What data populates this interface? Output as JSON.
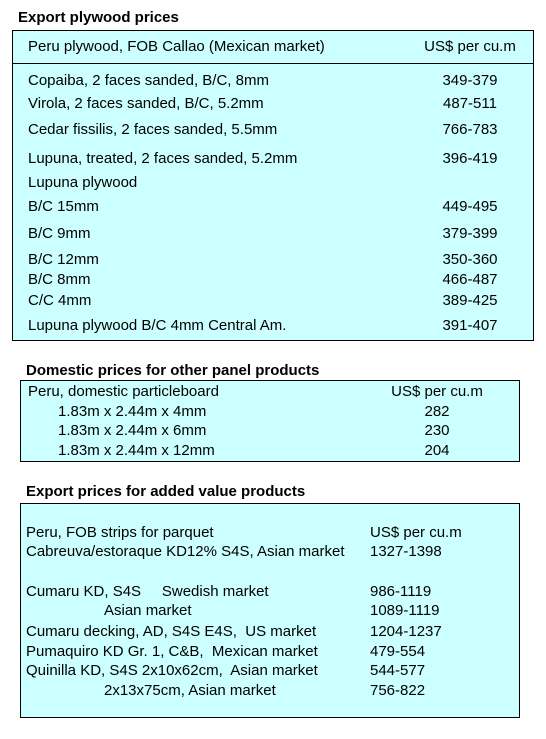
{
  "sections": [
    {
      "title": "Export plywood prices",
      "header": [
        "Peru plywood, FOB Callao (Mexican market)",
        "US$ per cu.m"
      ],
      "rows": [
        [
          "Copaiba, 2 faces sanded, B/C, 8mm",
          "349-379"
        ],
        [
          "Virola, 2 faces sanded, B/C, 5.2mm",
          "487-511"
        ],
        [
          "Cedar fissilis, 2 faces sanded, 5.5mm",
          "766-783"
        ],
        [
          "Lupuna, treated, 2 faces sanded, 5.2mm",
          "396-419"
        ],
        [
          "Lupuna plywood"
        ],
        [
          "B/C 15mm",
          "449-495"
        ],
        [
          "B/C 9mm",
          "379-399"
        ],
        [
          "B/C 12mm",
          "350-360"
        ],
        [
          "B/C 8mm",
          "466-487"
        ],
        [
          "C/C 4mm",
          "389-425"
        ],
        [
          "Lupuna plywood B/C 4mm Central Am.",
          "391-407"
        ]
      ]
    },
    {
      "title": "Domestic prices for other panel products",
      "header": [
        "Peru, domestic particleboard",
        "US$ per cu.m"
      ],
      "rows": [
        [
          "1.83m x 2.44m x 4mm",
          "282"
        ],
        [
          "1.83m x 2.44m x 6mm",
          "230"
        ],
        [
          "1.83m x 2.44m x 12mm",
          "204"
        ]
      ]
    },
    {
      "title": "Export prices for added value products",
      "header": [
        "Peru, FOB strips for parquet",
        "US$ per cu.m"
      ],
      "rows": [
        [
          "Cabreuva/estoraque KD12% S4S, Asian market",
          "1327-1398"
        ],
        [
          "Cumaru KD, S4S     Swedish market",
          "986-1119"
        ],
        [
          "Asian market",
          "1089-1119"
        ],
        [
          "Cumaru decking, AD, S4S E4S,  US market",
          "1204-1237"
        ],
        [
          "Pumaquiro KD Gr. 1, C&B,  Mexican market",
          "479-554"
        ],
        [
          "Quinilla KD, S4S 2x10x62cm,  Asian market",
          "544-577"
        ],
        [
          "2x13x75cm, Asian market",
          "756-822"
        ]
      ]
    }
  ]
}
